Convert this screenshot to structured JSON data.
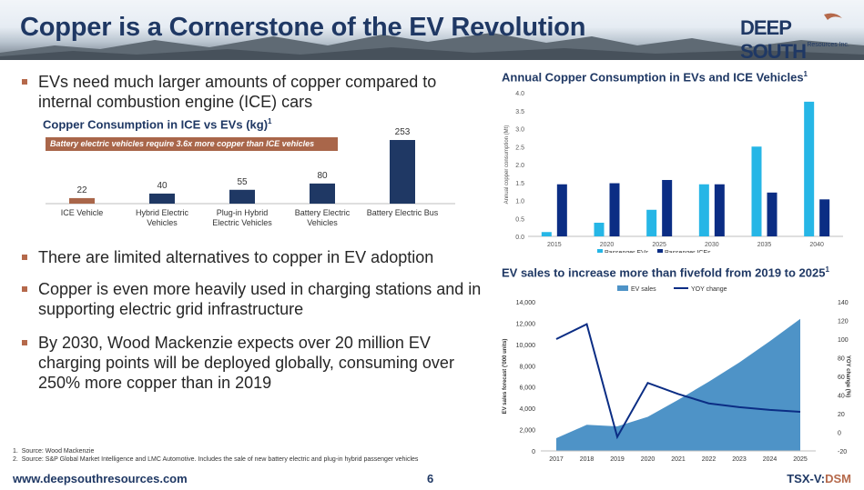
{
  "header": {
    "title": "Copper is a Cornerstone of the EV Revolution"
  },
  "logo": {
    "word": "DEEP SOUTH",
    "sub": "Resources Inc."
  },
  "bullets": [
    "EVs need much larger amounts of copper compared to internal combustion engine (ICE) cars",
    "There are limited alternatives to copper in EV adoption",
    "Copper is even more heavily used in charging stations and in supporting electric grid infrastructure",
    "By 2030, Wood Mackenzie expects over 20 million EV charging points will be deployed globally, consuming over 250% more copper than in 2019"
  ],
  "colors": {
    "navy": "#1f3864",
    "copper": "#a9664a",
    "light_blue": "#26b6e6",
    "dark_blue": "#0b2d84",
    "area_blue": "#4e93c7"
  },
  "chart_data": [
    {
      "type": "bar",
      "title": "Copper Consumption in ICE vs EVs (kg)",
      "title_sup": "1",
      "annotation": "Battery electric vehicles require 3.6x more copper than ICE vehicles",
      "categories": [
        "ICE Vehicle",
        "Hybrid Electric Vehicles",
        "Plug-in Hybrid Electric Vehicles",
        "Battery Electric Vehicles",
        "Battery Electric Bus"
      ],
      "category_lines": [
        [
          "ICE Vehicle"
        ],
        [
          "Hybrid Electric",
          "Vehicles"
        ],
        [
          "Plug-in Hybrid",
          "Electric Vehicles"
        ],
        [
          "Battery Electric",
          "Vehicles"
        ],
        [
          "Battery Electric Bus"
        ]
      ],
      "values": [
        22,
        40,
        55,
        80,
        253
      ],
      "bar_colors": [
        "#a9664a",
        "#1f3864",
        "#1f3864",
        "#1f3864",
        "#1f3864"
      ]
    },
    {
      "type": "bar",
      "title": "Annual Copper Consumption in EVs and ICE Vehicles",
      "title_sup": "1",
      "ylabel": "Annual copper consumption (Mt)",
      "categories": [
        "2015",
        "2020",
        "2025",
        "2030",
        "2035",
        "2040"
      ],
      "ylim": [
        0,
        4.0
      ],
      "yticks": [
        "0.0",
        "0.5",
        "1.0",
        "1.5",
        "2.0",
        "2.5",
        "3.0",
        "3.5",
        "4.0"
      ],
      "legend": "top",
      "series": [
        {
          "name": "Passenger EVs",
          "color": "#26b6e6",
          "values": [
            0.12,
            0.38,
            0.74,
            1.45,
            2.5,
            3.75
          ]
        },
        {
          "name": "Passenger ICEs",
          "color": "#0b2d84",
          "values": [
            1.45,
            1.48,
            1.57,
            1.45,
            1.22,
            1.03
          ]
        }
      ]
    },
    {
      "type": "area",
      "title": "EV sales to increase more than fivefold from 2019 to 2025",
      "title_sup": "1",
      "ylabel": "EV sales forecast ('000 units)",
      "y2label": "YOY change (%)",
      "x": [
        "2017",
        "2018",
        "2019",
        "2020",
        "2021",
        "2022",
        "2023",
        "2024",
        "2025"
      ],
      "ylim": [
        0,
        14000
      ],
      "yticks": [
        "0",
        "2,000",
        "4,000",
        "6,000",
        "8,000",
        "10,000",
        "12,000",
        "14,000"
      ],
      "y2lim": [
        -20,
        140
      ],
      "y2ticks": [
        "-20",
        "0",
        "20",
        "40",
        "60",
        "80",
        "100",
        "120",
        "140"
      ],
      "legend": "top",
      "series": [
        {
          "name": "EV sales",
          "kind": "area",
          "color": "#4e93c7",
          "values": [
            1200,
            2450,
            2300,
            3200,
            4800,
            6500,
            8300,
            10300,
            12400
          ]
        },
        {
          "name": "YOY change",
          "kind": "line",
          "axis": "right",
          "color": "#0b2d84",
          "values": [
            100,
            116,
            -5,
            53,
            41,
            31,
            27,
            24,
            22
          ]
        }
      ]
    }
  ],
  "footnotes": [
    {
      "num": "1.",
      "text": "Source: Wood Mackenzie"
    },
    {
      "num": "2.",
      "text": "Source: S&P Global Market Intelligence and LMC Automotive. Includes the sale of new battery electric and plug-in hybrid passenger vehicles"
    }
  ],
  "footer": {
    "url": "www.deepsouthresources.com",
    "page": "6",
    "ticker_prefix": "TSX-V:",
    "ticker_symbol": "DSM"
  }
}
